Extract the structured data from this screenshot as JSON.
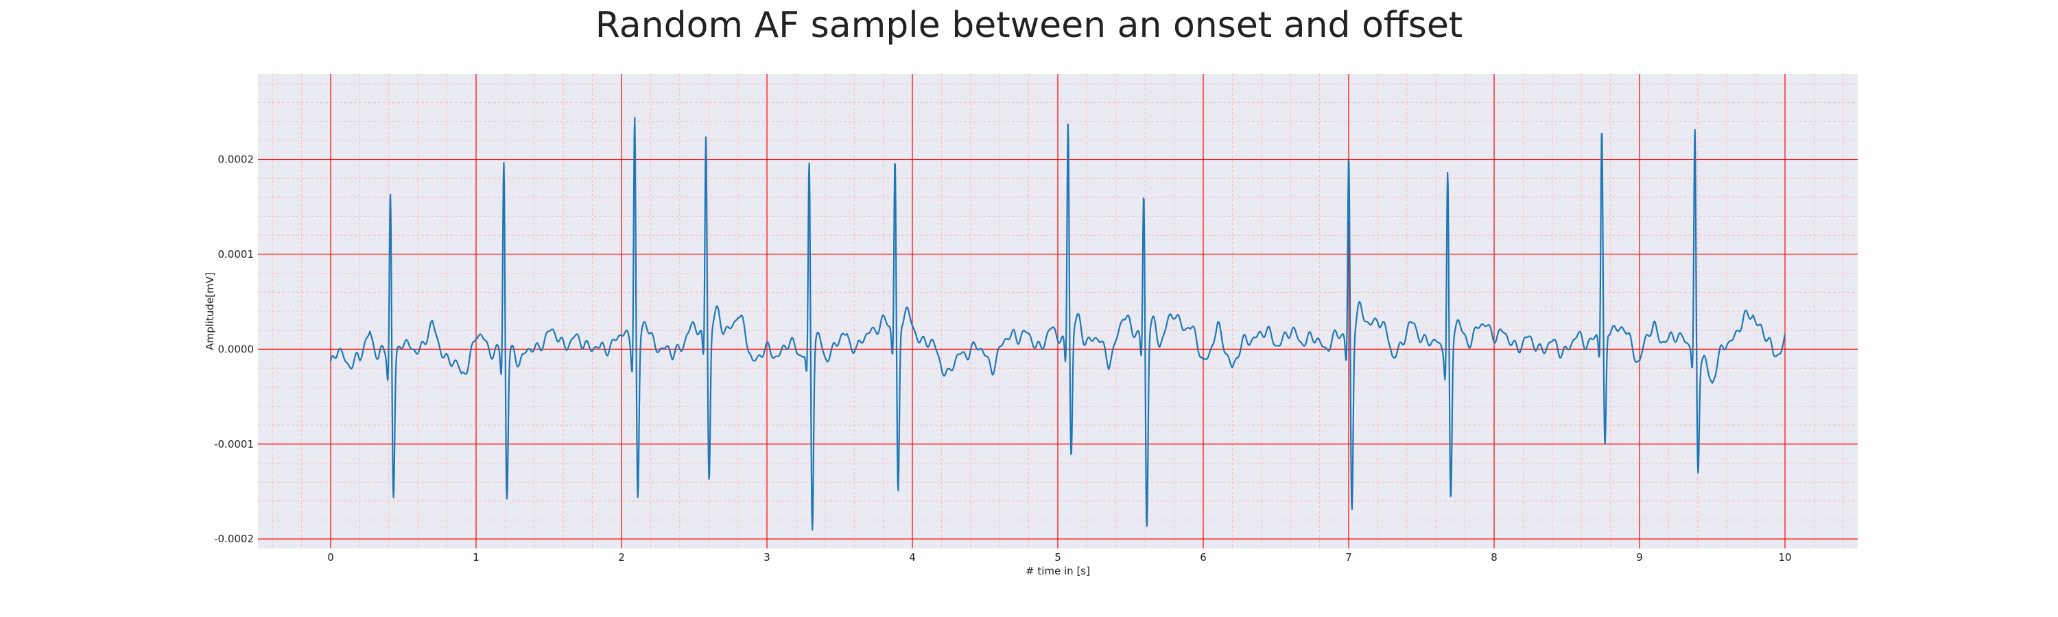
{
  "chart_data": {
    "type": "line",
    "title": "Random AF sample between an onset and offset",
    "xlabel": "# time in [s]",
    "ylabel": "Amplitude[mV]",
    "xlim": [
      -0.5,
      10.5
    ],
    "ylim": [
      -0.00021,
      0.00029
    ],
    "xticks": [
      0,
      1,
      2,
      3,
      4,
      5,
      6,
      7,
      8,
      9,
      10
    ],
    "xtick_labels": [
      "0",
      "1",
      "2",
      "3",
      "4",
      "5",
      "6",
      "7",
      "8",
      "9",
      "10"
    ],
    "yticks": [
      -0.0002,
      -0.0001,
      0.0,
      0.0001,
      0.0002
    ],
    "ytick_labels": [
      "-0.0002",
      "-0.0001",
      "0.0000",
      "0.0001",
      "0.0002"
    ],
    "grid": true,
    "minor_grid": true,
    "colors": {
      "background": "#eaeaf2",
      "grid_major": "#ff0000",
      "grid_minor": "#ffb3b3",
      "line": "#1f77b4"
    },
    "series": [
      {
        "r_peaks": [
          {
            "t": 0.41,
            "peak": 0.0002,
            "trough": -0.000128
          },
          {
            "t": 1.19,
            "peak": 0.000228,
            "trough": -0.000135
          },
          {
            "t": 2.09,
            "peak": 0.000272,
            "trough": -0.000148
          },
          {
            "t": 2.58,
            "peak": 0.000242,
            "trough": -0.000135
          },
          {
            "t": 3.29,
            "peak": 0.000223,
            "trough": -0.00017
          },
          {
            "t": 3.88,
            "peak": 0.000213,
            "trough": -0.000155
          },
          {
            "t": 5.07,
            "peak": 0.00026,
            "trough": -0.00011
          },
          {
            "t": 5.59,
            "peak": 0.00017,
            "trough": -0.00019
          },
          {
            "t": 7.0,
            "peak": 0.00022,
            "trough": -0.000165
          },
          {
            "t": 7.68,
            "peak": 0.000213,
            "trough": -0.000152
          },
          {
            "t": 8.74,
            "peak": 0.000245,
            "trough": -0.000105
          },
          {
            "t": 9.38,
            "peak": 0.000253,
            "trough": -0.000108
          }
        ],
        "baseline": [
          [
            0.0,
            -1.8e-05
          ],
          [
            0.05,
            -5e-06
          ],
          [
            0.12,
            -1e-05
          ],
          [
            0.2,
            -1.5e-05
          ],
          [
            0.27,
            2.2e-05
          ],
          [
            0.33,
            -8e-06
          ],
          [
            0.5,
            -5e-06
          ],
          [
            0.6,
            2e-06
          ],
          [
            0.7,
            2e-05
          ],
          [
            0.8,
            -8e-06
          ],
          [
            0.9,
            -2.8e-05
          ],
          [
            1.0,
            1.2e-05
          ],
          [
            1.08,
            5e-06
          ],
          [
            1.3,
            -1.5e-05
          ],
          [
            1.45,
            1e-05
          ],
          [
            1.55,
            1.5e-05
          ],
          [
            1.65,
            5e-06
          ],
          [
            1.75,
            1e-05
          ],
          [
            1.85,
            -5e-06
          ],
          [
            1.95,
            1.2e-05
          ],
          [
            2.25,
            8e-06
          ],
          [
            2.35,
            -1e-05
          ],
          [
            2.45,
            1.8e-05
          ],
          [
            2.7,
            2e-05
          ],
          [
            2.8,
            3.5e-05
          ],
          [
            2.9,
            -8e-06
          ],
          [
            3.0,
            -5e-06
          ],
          [
            3.15,
            2e-06
          ],
          [
            3.45,
            -5e-06
          ],
          [
            3.55,
            2e-05
          ],
          [
            3.62,
            -5e-06
          ],
          [
            3.72,
            2.5e-05
          ],
          [
            4.0,
            2.2e-05
          ],
          [
            4.12,
            5e-06
          ],
          [
            4.25,
            -2.5e-05
          ],
          [
            4.4,
            5e-06
          ],
          [
            4.55,
            -1.5e-05
          ],
          [
            4.7,
            2e-05
          ],
          [
            4.85,
            5e-06
          ],
          [
            4.95,
            1.5e-05
          ],
          [
            5.25,
            1.2e-05
          ],
          [
            5.35,
            -1e-05
          ],
          [
            5.45,
            3e-05
          ],
          [
            5.7,
            1e-05
          ],
          [
            5.8,
            3.5e-05
          ],
          [
            5.9,
            2.5e-05
          ],
          [
            6.0,
            -1.2e-05
          ],
          [
            6.1,
            1.8e-05
          ],
          [
            6.2,
            -1.5e-05
          ],
          [
            6.35,
            1.8e-05
          ],
          [
            6.5,
            1e-05
          ],
          [
            6.65,
            1.5e-05
          ],
          [
            6.8,
            5e-06
          ],
          [
            6.92,
            1e-05
          ],
          [
            7.2,
            3.5e-05
          ],
          [
            7.3,
            -5e-06
          ],
          [
            7.45,
            2.5e-05
          ],
          [
            7.58,
            2e-06
          ],
          [
            7.85,
            1.5e-05
          ],
          [
            7.95,
            2.5e-05
          ],
          [
            8.1,
            8e-06
          ],
          [
            8.3,
            5e-06
          ],
          [
            8.45,
            0.0
          ],
          [
            8.6,
            1e-05
          ],
          [
            8.9,
            1.8e-05
          ],
          [
            9.0,
            -1e-05
          ],
          [
            9.1,
            2.5e-05
          ],
          [
            9.2,
            5e-06
          ],
          [
            9.3,
            1.8e-05
          ],
          [
            9.5,
            -3.5e-05
          ],
          [
            9.6,
            1e-05
          ],
          [
            9.7,
            2.2e-05
          ],
          [
            9.78,
            4.2e-05
          ],
          [
            9.85,
            1.5e-05
          ],
          [
            9.92,
            -5e-06
          ],
          [
            10.0,
            1e-05
          ]
        ]
      }
    ]
  }
}
